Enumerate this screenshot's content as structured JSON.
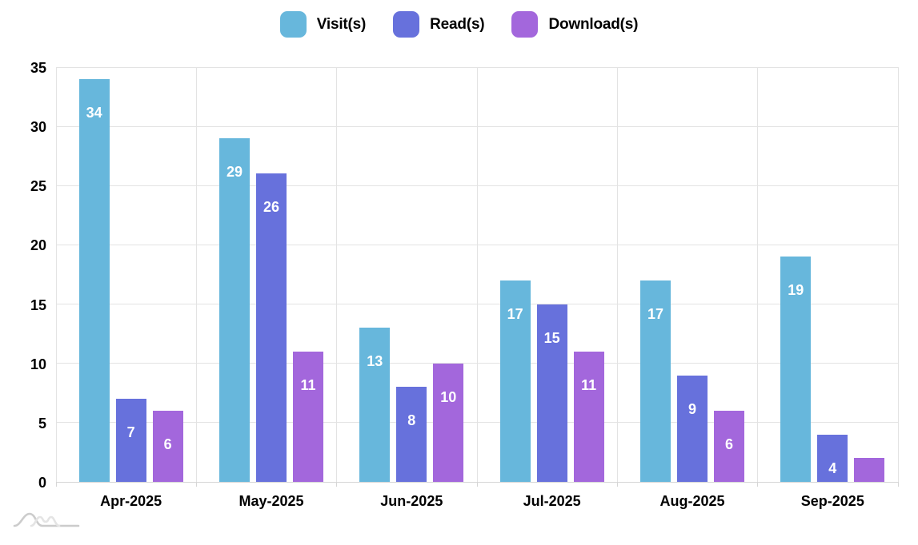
{
  "chart_data": {
    "type": "bar",
    "title": "",
    "xlabel": "",
    "ylabel": "",
    "categories": [
      "Apr-2025",
      "May-2025",
      "Jun-2025",
      "Jul-2025",
      "Aug-2025",
      "Sep-2025"
    ],
    "series": [
      {
        "name": "Visit(s)",
        "color": "#67B7DC",
        "values": [
          34,
          29,
          13,
          17,
          17,
          19
        ]
      },
      {
        "name": "Read(s)",
        "color": "#6771DC",
        "values": [
          7,
          26,
          8,
          15,
          9,
          4
        ]
      },
      {
        "name": "Download(s)",
        "color": "#A367DC",
        "values": [
          6,
          11,
          10,
          11,
          6,
          2
        ]
      }
    ],
    "ylim": [
      0,
      35
    ],
    "yticks": [
      0,
      5,
      10,
      15,
      20,
      25,
      30,
      35
    ],
    "grid": true,
    "legend_position": "top-center",
    "value_labels": "white numbers inside bars near top; hidden when bar is too short (Sep-2025 Download(s)=2 has no label)"
  },
  "branding": {
    "icon": "amcharts-watermark"
  }
}
